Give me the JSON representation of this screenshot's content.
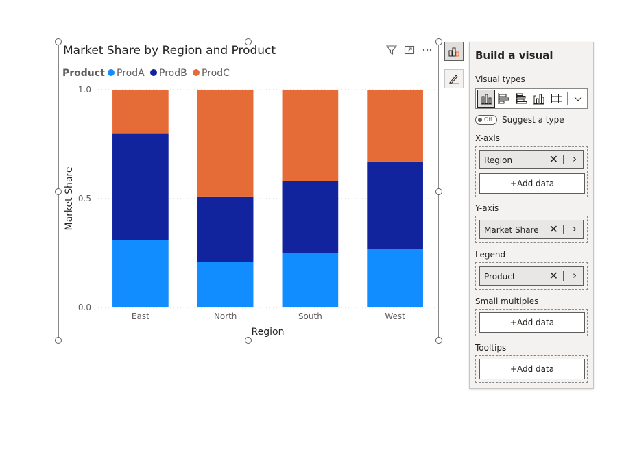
{
  "visual": {
    "title": "Market Share by Region and Product",
    "header_icons": [
      "filter-icon",
      "focus-mode-icon",
      "more-options-icon"
    ]
  },
  "chart_data": {
    "type": "bar",
    "stacked": true,
    "title": "Market Share by Region and Product",
    "xlabel": "Region",
    "ylabel": "Market Share",
    "ylim": [
      0,
      1
    ],
    "yticks": [
      "0.0",
      "0.5",
      "1.0"
    ],
    "legend_title": "Product",
    "legend_position": "top-left",
    "categories": [
      "East",
      "North",
      "South",
      "West"
    ],
    "series": [
      {
        "name": "ProdA",
        "color": "#118DFF",
        "values": [
          0.31,
          0.21,
          0.25,
          0.27
        ]
      },
      {
        "name": "ProdB",
        "color": "#12239E",
        "values": [
          0.49,
          0.3,
          0.33,
          0.4
        ]
      },
      {
        "name": "ProdC",
        "color": "#E66C37",
        "values": [
          0.2,
          0.49,
          0.42,
          0.33
        ]
      }
    ],
    "grid": "dotted-horizontal"
  },
  "pane": {
    "title": "Build a visual",
    "visual_types_label": "Visual types",
    "visual_type_icons": [
      "stacked-column-chart-icon",
      "stacked-bar-chart-icon",
      "clustered-bar-chart-icon",
      "clustered-column-chart-icon",
      "table-icon"
    ],
    "suggest_toggle": "Off",
    "suggest_label": "Suggest a type",
    "xaxis": {
      "label": "X-axis",
      "field": "Region",
      "add": "+Add data"
    },
    "yaxis": {
      "label": "Y-axis",
      "field": "Market Share"
    },
    "legend": {
      "label": "Legend",
      "field": "Product"
    },
    "small_multiples": {
      "label": "Small multiples",
      "add": "+Add data"
    },
    "tooltips": {
      "label": "Tooltips",
      "add": "+Add data"
    }
  }
}
